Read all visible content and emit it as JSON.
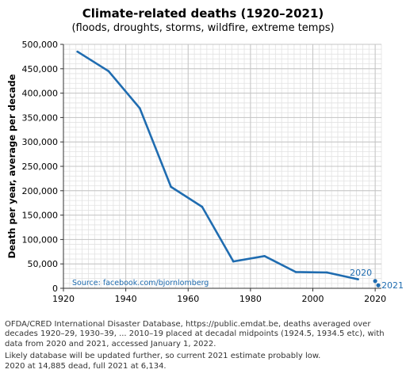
{
  "chart_data": {
    "type": "line",
    "title": "Climate-related deaths (1920–2021)",
    "subtitle": "(floods, droughts, storms, wildfire, extreme temps)",
    "xlabel": "",
    "ylabel": "Death per year, average per decade",
    "xlim": [
      1920,
      2022
    ],
    "ylim": [
      0,
      500000
    ],
    "x_ticks": [
      1920,
      1940,
      1960,
      1980,
      2000,
      2020
    ],
    "y_ticks": [
      0,
      50000,
      100000,
      150000,
      200000,
      250000,
      300000,
      350000,
      400000,
      450000,
      500000
    ],
    "y_tick_labels": [
      "0",
      "50,000",
      "100,000",
      "150,000",
      "200,000",
      "250,000",
      "300,000",
      "350,000",
      "400,000",
      "450,000",
      "500,000"
    ],
    "grid": true,
    "color": "#1f6cb0",
    "series": [
      {
        "x": [
          1924.5,
          1934.5,
          1944.5,
          1954.5,
          1964.5,
          1974.5,
          1984.5,
          1994.5,
          2004.5,
          2014.5
        ],
        "y": [
          485000,
          445000,
          369000,
          208000,
          167000,
          55000,
          66000,
          33500,
          32500,
          18500
        ]
      }
    ],
    "points": [
      {
        "x": 2020,
        "y": 14885,
        "label": "2020"
      },
      {
        "x": 2021,
        "y": 6134,
        "label": "2021"
      }
    ],
    "source": "Source: facebook.com/bjornlomberg"
  },
  "notes": {
    "line1": "OFDA/CRED International Disaster Database, https://public.emdat.be, deaths averaged over decades 1920–29, 1930–39, ... 2010–19 placed at decadal midpoints (1924.5, 1934.5 etc), with data from 2020 and 2021, accessed January 1, 2022.",
    "line2": "Likely database will be updated further, so current 2021 estimate probably low.",
    "line3": "2020 at 14,885 dead, full 2021 at 6,134."
  }
}
